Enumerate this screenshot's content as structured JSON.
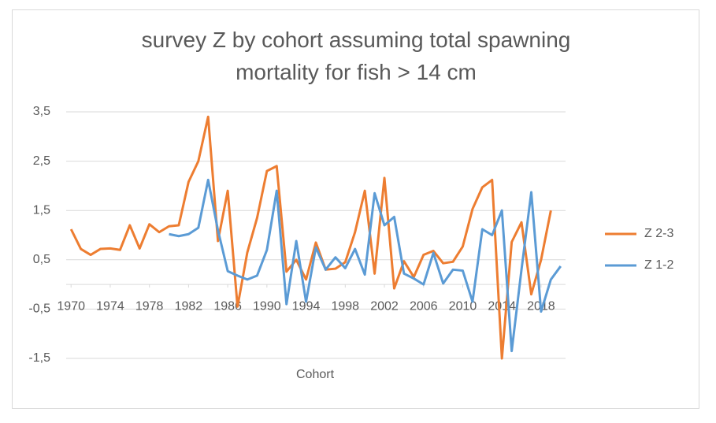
{
  "chart_data": {
    "type": "line",
    "title": "survey Z by cohort assuming total spawning mortality for fish > 14 cm",
    "x_label": "Cohort",
    "x": [
      1970,
      1971,
      1972,
      1973,
      1974,
      1975,
      1976,
      1977,
      1978,
      1979,
      1980,
      1981,
      1982,
      1983,
      1984,
      1985,
      1986,
      1987,
      1988,
      1989,
      1990,
      1991,
      1992,
      1993,
      1994,
      1995,
      1996,
      1997,
      1998,
      1999,
      2000,
      2001,
      2002,
      2003,
      2004,
      2005,
      2006,
      2007,
      2008,
      2009,
      2010,
      2011,
      2012,
      2013,
      2014,
      2015,
      2016,
      2017,
      2018,
      2019,
      2020
    ],
    "xlim": [
      1969.5,
      2020.5
    ],
    "xticks": [
      1970,
      1974,
      1978,
      1982,
      1986,
      1990,
      1994,
      1998,
      2002,
      2006,
      2010,
      2014,
      2018
    ],
    "ylim": [
      -1.5,
      3.5
    ],
    "yticks": [
      {
        "value": -1.5,
        "label": "-1,5"
      },
      {
        "value": -0.5,
        "label": "-0,5"
      },
      {
        "value": 0.5,
        "label": "0,5"
      },
      {
        "value": 1.5,
        "label": "1,5"
      },
      {
        "value": 2.5,
        "label": "2,5"
      },
      {
        "value": 3.5,
        "label": "3,5"
      }
    ],
    "grid": true,
    "legend": "right",
    "series": [
      {
        "name": "Z 2-3",
        "color": "#ED7D31",
        "values": [
          1.12,
          0.72,
          0.6,
          0.72,
          0.73,
          0.7,
          1.2,
          0.73,
          1.22,
          1.06,
          1.18,
          1.2,
          2.08,
          2.5,
          3.4,
          0.88,
          1.9,
          -0.45,
          0.65,
          1.35,
          2.3,
          2.4,
          0.26,
          0.5,
          0.1,
          0.85,
          0.3,
          0.32,
          0.45,
          1.06,
          1.9,
          0.22,
          2.16,
          -0.08,
          0.47,
          0.15,
          0.6,
          0.68,
          0.43,
          0.46,
          0.77,
          1.53,
          1.97,
          2.12,
          -1.5,
          0.86,
          1.26,
          -0.2,
          0.5,
          1.5,
          null
        ]
      },
      {
        "name": "Z 1-2",
        "color": "#5B9BD5",
        "values": [
          null,
          null,
          null,
          null,
          null,
          null,
          null,
          null,
          null,
          null,
          1.02,
          0.98,
          1.02,
          1.15,
          2.12,
          1.1,
          0.27,
          0.18,
          0.1,
          0.18,
          0.7,
          1.9,
          -0.4,
          0.88,
          -0.35,
          0.75,
          0.3,
          0.55,
          0.33,
          0.72,
          0.2,
          1.85,
          1.2,
          1.37,
          0.22,
          0.12,
          0.0,
          0.64,
          0.02,
          0.3,
          0.28,
          -0.35,
          1.12,
          1.0,
          1.5,
          -1.35,
          0.3,
          1.87,
          -0.55,
          0.1,
          0.37
        ]
      }
    ]
  }
}
